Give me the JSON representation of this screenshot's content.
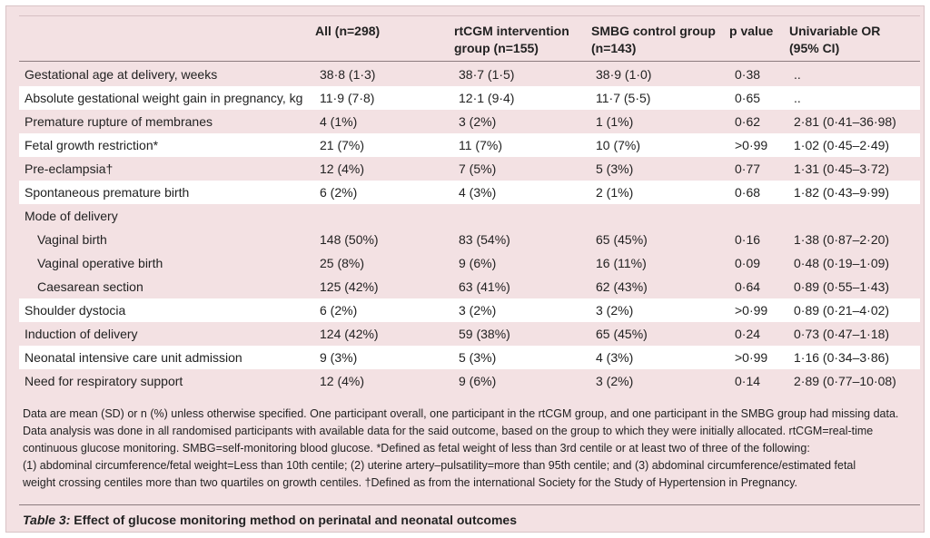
{
  "headers": {
    "label": "",
    "all": [
      "All (n=298)"
    ],
    "rtcgm": [
      "rtCGM intervention",
      "group (n=155)"
    ],
    "smbg": [
      "SMBG control group",
      "(n=143)"
    ],
    "p": [
      "p value"
    ],
    "or": [
      "Univariable OR",
      "(95% CI)"
    ]
  },
  "rows": [
    {
      "label": "Gestational age at delivery, weeks",
      "all": "38·8 (1·3)",
      "rtcgm": "38·7 (1·5)",
      "smbg": "38·9 (1·0)",
      "p": "0·38",
      "or": "..",
      "indent": false,
      "white": false
    },
    {
      "label": "Absolute gestational weight gain in pregnancy, kg",
      "all": "11·9 (7·8)",
      "rtcgm": "12·1 (9·4)",
      "smbg": "11·7 (5·5)",
      "p": "0·65",
      "or": "..",
      "indent": false,
      "white": true
    },
    {
      "label": "Premature rupture of membranes",
      "all": "4 (1%)",
      "rtcgm": "3 (2%)",
      "smbg": "1 (1%)",
      "p": "0·62",
      "or": "2·81 (0·41–36·98)",
      "indent": false,
      "white": false
    },
    {
      "label": "Fetal growth restriction*",
      "all": "21 (7%)",
      "rtcgm": "11 (7%)",
      "smbg": "10 (7%)",
      "p": ">0·99",
      "or": "1·02 (0·45–2·49)",
      "indent": false,
      "white": true
    },
    {
      "label": "Pre-eclampsia†",
      "all": "12 (4%)",
      "rtcgm": "7 (5%)",
      "smbg": "5 (3%)",
      "p": "0·77",
      "or": "1·31 (0·45–3·72)",
      "indent": false,
      "white": false
    },
    {
      "label": "Spontaneous premature birth",
      "all": "6 (2%)",
      "rtcgm": "4 (3%)",
      "smbg": "2 (1%)",
      "p": "0·68",
      "or": "1·82 (0·43–9·99)",
      "indent": false,
      "white": true
    },
    {
      "label": "Mode of delivery",
      "all": "",
      "rtcgm": "",
      "smbg": "",
      "p": "",
      "or": "",
      "indent": false,
      "white": false
    },
    {
      "label": "Vaginal birth",
      "all": "148 (50%)",
      "rtcgm": "83 (54%)",
      "smbg": "65 (45%)",
      "p": "0·16",
      "or": "1·38 (0·87–2·20)",
      "indent": true,
      "white": false
    },
    {
      "label": "Vaginal operative birth",
      "all": "25 (8%)",
      "rtcgm": "9 (6%)",
      "smbg": "16 (11%)",
      "p": "0·09",
      "or": "0·48 (0·19–1·09)",
      "indent": true,
      "white": false
    },
    {
      "label": "Caesarean section",
      "all": "125 (42%)",
      "rtcgm": "63 (41%)",
      "smbg": "62 (43%)",
      "p": "0·64",
      "or": "0·89 (0·55–1·43)",
      "indent": true,
      "white": false
    },
    {
      "label": "Shoulder dystocia",
      "all": "6 (2%)",
      "rtcgm": "3 (2%)",
      "smbg": "3 (2%)",
      "p": ">0·99",
      "or": "0·89 (0·21–4·02)",
      "indent": false,
      "white": true
    },
    {
      "label": "Induction of delivery",
      "all": "124 (42%)",
      "rtcgm": "59 (38%)",
      "smbg": "65 (45%)",
      "p": "0·24",
      "or": "0·73 (0·47–1·18)",
      "indent": false,
      "white": false
    },
    {
      "label": "Neonatal intensive care unit admission",
      "all": "9 (3%)",
      "rtcgm": "5 (3%)",
      "smbg": "4 (3%)",
      "p": ">0·99",
      "or": "1·16 (0·34–3·86)",
      "indent": false,
      "white": true
    },
    {
      "label": "Need for respiratory support",
      "all": "12 (4%)",
      "rtcgm": "9 (6%)",
      "smbg": "3 (2%)",
      "p": "0·14",
      "or": "2·89 (0·77–10·08)",
      "indent": false,
      "white": false
    }
  ],
  "footnote_lines": [
    "Data are mean (SD) or n (%) unless otherwise specified. One participant overall, one participant in the rtCGM group, and one participant in the SMBG group had missing data.",
    "Data analysis was done in all randomised participants with available data for the said outcome, based on the group to which they were initially allocated. rtCGM=real-time",
    "continuous glucose monitoring. SMBG=self-monitoring blood glucose. *Defined as fetal weight of less than 3rd centile or at least two of three of the following:",
    "(1) abdominal circumference/fetal weight=Less than 10th centile; (2) uterine artery–pulsatility=more than 95th centile; and (3) abdominal circumference/estimated fetal",
    "weight crossing centiles more than two quartiles on growth centiles. †Defined as from the international Society for the Study of Hypertension in Pregnancy."
  ],
  "caption": {
    "label": "Table 3:",
    "title": " Effect of glucose monitoring method on perinatal and neonatal outcomes"
  }
}
